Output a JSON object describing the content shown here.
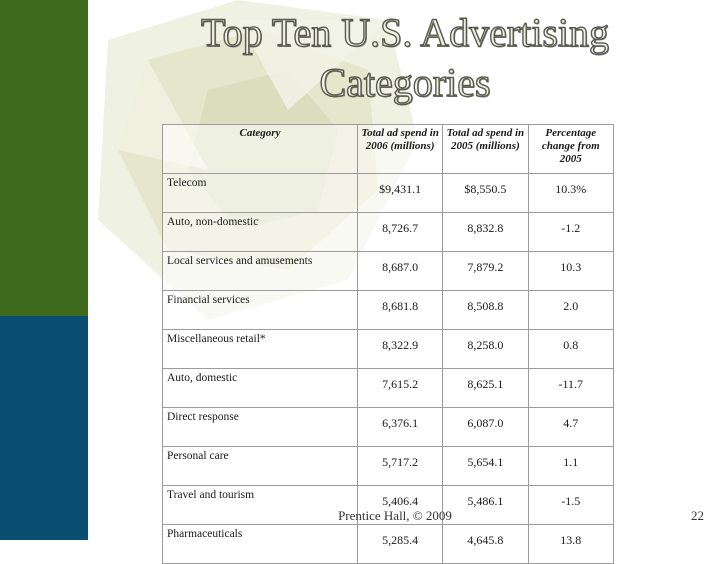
{
  "slide": {
    "title_line1": "Top Ten U.S. Advertising",
    "title_line2": "Categories",
    "footer": "Prentice Hall, © 2009",
    "page_number": "22"
  },
  "colors": {
    "accent_green": "#3f6a1e",
    "accent_blue": "#0a4f72",
    "watermark": "#e6e8d2"
  },
  "table": {
    "headers": [
      "Category",
      "Total ad spend in 2006 (millions)",
      "Total ad spend in 2005 (millions)",
      "Percentage change from 2005"
    ],
    "rows": [
      [
        "Telecom",
        "$9,431.1",
        "$8,550.5",
        "10.3%"
      ],
      [
        "Auto, non-domestic",
        "8,726.7",
        "8,832.8",
        "-1.2"
      ],
      [
        "Local services and amusements",
        "8,687.0",
        "7,879.2",
        "10.3"
      ],
      [
        "Financial services",
        "8,681.8",
        "8,508.8",
        "2.0"
      ],
      [
        "Miscellaneous retail*",
        "8,322.9",
        "8,258.0",
        "0.8"
      ],
      [
        "Auto, domestic",
        "7,615.2",
        "8,625.1",
        "-11.7"
      ],
      [
        "Direct response",
        "6,376.1",
        "6,087.0",
        "4.7"
      ],
      [
        "Personal care",
        "5,717.2",
        "5,654.1",
        "1.1"
      ],
      [
        "Travel and tourism",
        "5,406.4",
        "5,486.1",
        "-1.5"
      ],
      [
        "Pharmaceuticals",
        "5,285.4",
        "4,645.8",
        "13.8"
      ]
    ]
  }
}
